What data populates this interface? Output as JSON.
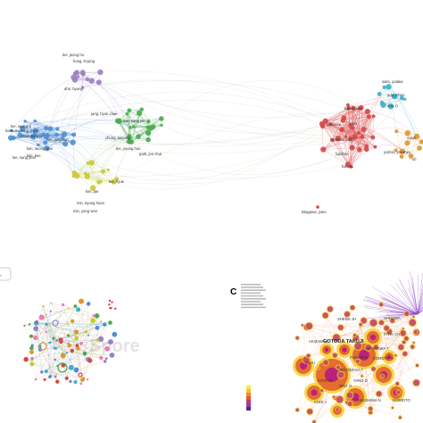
{
  "panel_top": {
    "clusters": {
      "purple": {
        "color": "#9b7fc2",
        "labels": [
          "lee, jeong ho",
          "hong, ki-jung",
          "ahn, byung"
        ]
      },
      "blue": {
        "color": "#4e8fd4",
        "labels": [
          "lee, seung-il",
          "kook, myeong cheol",
          "choi, sung ju",
          "kim, jung kun",
          "kim, seong won",
          "kim, kee",
          "lee, sang yeol"
        ]
      },
      "green": {
        "color": "#4aa84e",
        "labels": [
          "jung, hyun chae",
          "kim, sang jun",
          "chung, seoung",
          "lee, young hun",
          "park, joo chul"
        ]
      },
      "yellow": {
        "color": "#c9c935",
        "labels": [
          "min, byung hoon",
          "lee, hyuk",
          "kim, jae",
          "min, yong won"
        ]
      },
      "red": {
        "color": "#d84646",
        "labels": [
          "gotoda, takuji",
          "kakushima",
          "kato",
          "fujishiro",
          "takeuchi",
          "fukuda"
        ]
      },
      "cyan": {
        "color": "#3ab0c8",
        "labels": [
          "saito, yutaka",
          "oda, ichiro",
          "ono, h"
        ]
      },
      "orange": {
        "color": "#e0962e",
        "labels": [
          "yoshio, yasuhiro",
          "oyam",
          "sh"
        ]
      },
      "misc": {
        "labels": [
          "kitagawa, yuko"
        ]
      }
    }
  },
  "panel_b": {
    "letter": "",
    "cut_label": "vr",
    "watermark": "Spore"
  },
  "panel_c": {
    "letter": "C",
    "labels": [
      "GOTODA TAKUJI",
      "AKIZAWA K",
      "PARK CH",
      "KATO M",
      "ODA I",
      "SHENG JH",
      "FUKAMI N",
      "HIRASAWA T",
      "KOMOTO H",
      "ONO H",
      "KAKUSHIMA N",
      "CHOI J",
      "TOYONAGA T",
      "YANG D",
      "OHKUWA",
      "ISOMOTO"
    ]
  }
}
